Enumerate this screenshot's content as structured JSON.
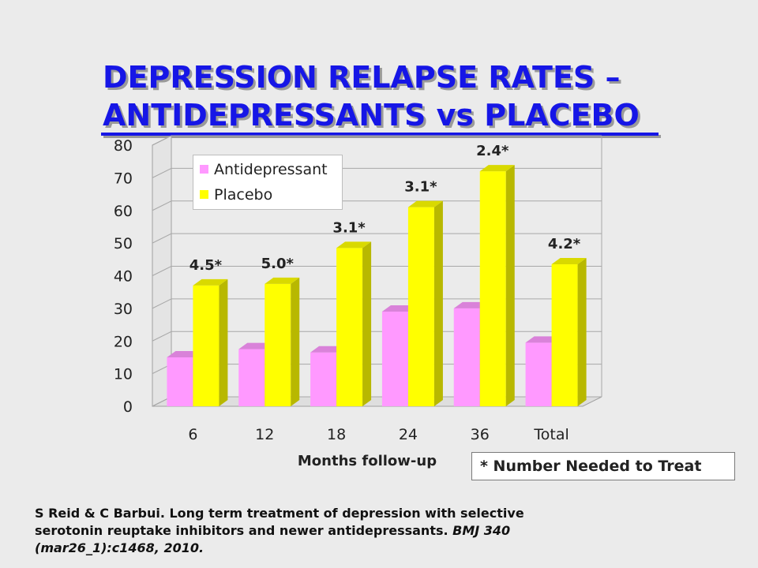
{
  "title": {
    "line1": "DEPRESSION RELAPSE RATES –",
    "line2": "ANTIDEPRESSANTS vs PLACEBO"
  },
  "note": "* Number Needed to Treat",
  "citation": {
    "text": "S Reid & C Barbui. Long term treatment of depression with selective serotonin reuptake inhibitors and newer antidepressants. ",
    "journal": "BMJ 340 (mar26_1):c1468,  2010."
  },
  "chart_data": {
    "type": "bar",
    "xlabel": "Months follow-up",
    "ylabel": "",
    "ylim": [
      0,
      80
    ],
    "yticks": [
      "0",
      "10",
      "20",
      "30",
      "40",
      "50",
      "60",
      "70",
      "80"
    ],
    "categories": [
      "6",
      "12",
      "18",
      "24",
      "36",
      "Total"
    ],
    "series": [
      {
        "name": "Antidepressant",
        "values": [
          15,
          17.5,
          16.5,
          29,
          30,
          19.5
        ],
        "color": "#ff99ff"
      },
      {
        "name": "Placebo",
        "values": [
          37,
          37.5,
          48.5,
          61,
          72,
          43.5
        ],
        "color": "#ffff00"
      }
    ],
    "annotations": [
      "4.5*",
      "5.0*",
      "3.1*",
      "3.1*",
      "2.4*",
      "4.2*"
    ],
    "legend": "top-left",
    "grid": true,
    "style": "3d"
  }
}
